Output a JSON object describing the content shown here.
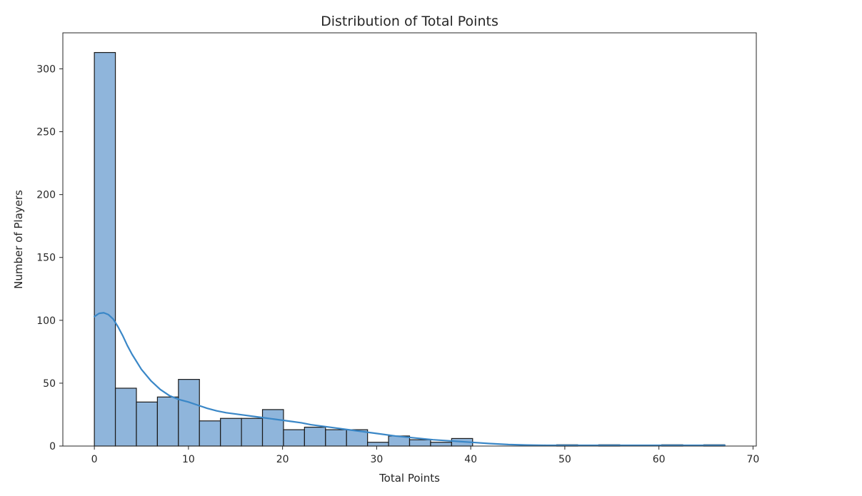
{
  "chart_data": {
    "type": "bar",
    "subtype": "histogram_with_kde",
    "title": "Distribution of Total Points",
    "xlabel": "Total Points",
    "ylabel": "Number of Players",
    "xlim": [
      -3.35,
      70.35
    ],
    "ylim": [
      0,
      328.65
    ],
    "xticks": [
      0,
      10,
      20,
      30,
      40,
      50,
      60,
      70
    ],
    "yticks": [
      0,
      50,
      100,
      150,
      200,
      250,
      300
    ],
    "grid": false,
    "legend": "none",
    "bin_width": 2.2333,
    "bins": [
      {
        "x0": 0.0,
        "x1": 2.2333,
        "count": 313
      },
      {
        "x0": 2.2333,
        "x1": 4.4667,
        "count": 46
      },
      {
        "x0": 4.4667,
        "x1": 6.7,
        "count": 35
      },
      {
        "x0": 6.7,
        "x1": 8.9333,
        "count": 39
      },
      {
        "x0": 8.9333,
        "x1": 11.1667,
        "count": 53
      },
      {
        "x0": 11.1667,
        "x1": 13.4,
        "count": 20
      },
      {
        "x0": 13.4,
        "x1": 15.6333,
        "count": 22
      },
      {
        "x0": 15.6333,
        "x1": 17.8667,
        "count": 22
      },
      {
        "x0": 17.8667,
        "x1": 20.1,
        "count": 29
      },
      {
        "x0": 20.1,
        "x1": 22.3333,
        "count": 13
      },
      {
        "x0": 22.3333,
        "x1": 24.5667,
        "count": 15
      },
      {
        "x0": 24.5667,
        "x1": 26.8,
        "count": 13
      },
      {
        "x0": 26.8,
        "x1": 29.0333,
        "count": 13
      },
      {
        "x0": 29.0333,
        "x1": 31.2667,
        "count": 3
      },
      {
        "x0": 31.2667,
        "x1": 33.5,
        "count": 8
      },
      {
        "x0": 33.5,
        "x1": 35.7333,
        "count": 5
      },
      {
        "x0": 35.7333,
        "x1": 37.9667,
        "count": 3
      },
      {
        "x0": 37.9667,
        "x1": 40.2,
        "count": 6
      },
      {
        "x0": 40.2,
        "x1": 42.4333,
        "count": 0
      },
      {
        "x0": 42.4333,
        "x1": 44.6667,
        "count": 0
      },
      {
        "x0": 44.6667,
        "x1": 46.9,
        "count": 0
      },
      {
        "x0": 46.9,
        "x1": 49.1333,
        "count": 0
      },
      {
        "x0": 49.1333,
        "x1": 51.3667,
        "count": 1
      },
      {
        "x0": 51.3667,
        "x1": 53.6,
        "count": 0
      },
      {
        "x0": 53.6,
        "x1": 55.8333,
        "count": 1
      },
      {
        "x0": 55.8333,
        "x1": 58.0667,
        "count": 0
      },
      {
        "x0": 58.0667,
        "x1": 60.3,
        "count": 0
      },
      {
        "x0": 60.3,
        "x1": 62.5333,
        "count": 1
      },
      {
        "x0": 62.5333,
        "x1": 64.7667,
        "count": 0
      },
      {
        "x0": 64.7667,
        "x1": 67.0,
        "count": 1
      }
    ],
    "kde": {
      "x": [
        0,
        0.5,
        1,
        1.5,
        2,
        2.5,
        3,
        3.5,
        4,
        5,
        6,
        7,
        8,
        9,
        10,
        11,
        12,
        13,
        14,
        15,
        16,
        17,
        18,
        19,
        20,
        21,
        22,
        23,
        24,
        25,
        26,
        27,
        28,
        29,
        30,
        32,
        34,
        36,
        38,
        40,
        42,
        44,
        46,
        48,
        50,
        52,
        54,
        56,
        58,
        60,
        62,
        64,
        66,
        67
      ],
      "y": [
        103,
        105.5,
        106,
        104.5,
        101,
        95,
        88,
        80,
        73,
        61,
        52,
        45,
        40,
        37,
        35,
        32.5,
        30,
        28,
        26.5,
        25.5,
        24.5,
        23.5,
        22.5,
        21.5,
        20.5,
        19.5,
        18.5,
        17,
        16,
        15,
        14,
        13,
        12,
        11,
        10,
        8,
        6.5,
        5,
        4,
        3,
        2,
        1.2,
        0.8,
        0.6,
        0.6,
        0.6,
        0.6,
        0.6,
        0.6,
        0.6,
        0.6,
        0.6,
        0.6,
        0.6
      ]
    },
    "colors": {
      "bar_fill": "#8fb5db",
      "bar_edge": "#1a1a1a",
      "kde_line": "#3a87c7",
      "axes": "#262626",
      "text": "#262626"
    }
  }
}
